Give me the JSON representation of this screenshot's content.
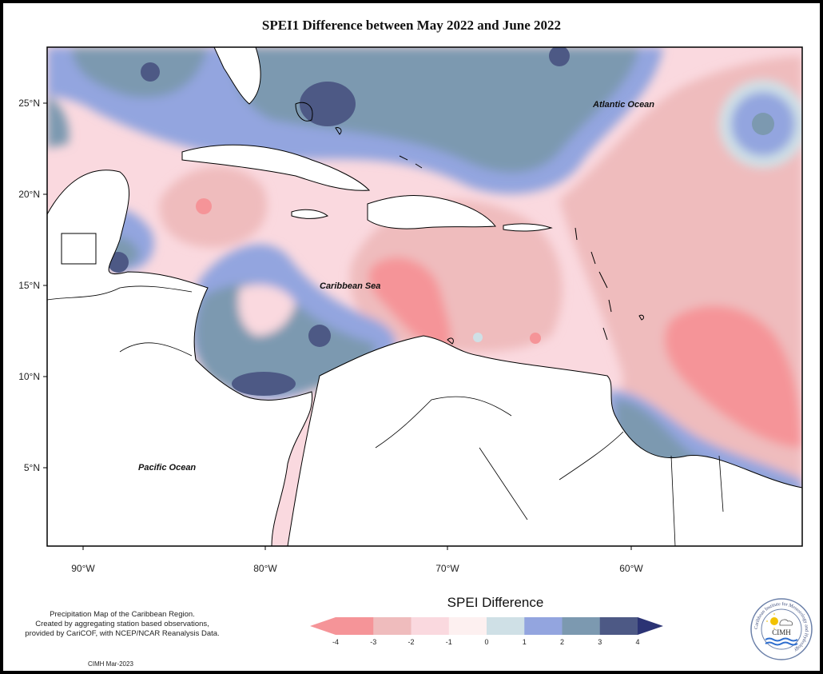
{
  "title": "SPEI1 Difference between May 2022 and June 2022",
  "map": {
    "lat_labels": [
      "25°N",
      "20°N",
      "15°N",
      "10°N",
      "5°N"
    ],
    "lon_labels": [
      "90°W",
      "80°W",
      "70°W",
      "60°W"
    ],
    "ocean_labels": {
      "atlantic": "Atlantic Ocean",
      "caribbean": "Caribbean Sea",
      "pacific": "Pacific Ocean"
    }
  },
  "legend": {
    "title": "SPEI Difference",
    "tick_labels": [
      "-4",
      "-3",
      "-2",
      "-1",
      "0",
      "1",
      "2",
      "3",
      "4"
    ],
    "colors": [
      "#f59498",
      "#efbcbd",
      "#fad9df",
      "#fdf0f0",
      "#cfe0e6",
      "#93a5df",
      "#7c99b0",
      "#4d5985",
      "#2b3374"
    ]
  },
  "credit": {
    "lines": [
      "Precipitation Map of the Caribbean Region.",
      "Created by aggregating station based observations,",
      "provided by CariCOF, with NCEP/NCAR Reanalysis Data."
    ],
    "stamp": "CIMH Mar-2023"
  },
  "logo": {
    "text": "CIMH",
    "ring_text": "Caribbean Institute for Meteorology and Hydrology",
    "icon": "cimh-logo-icon"
  }
}
